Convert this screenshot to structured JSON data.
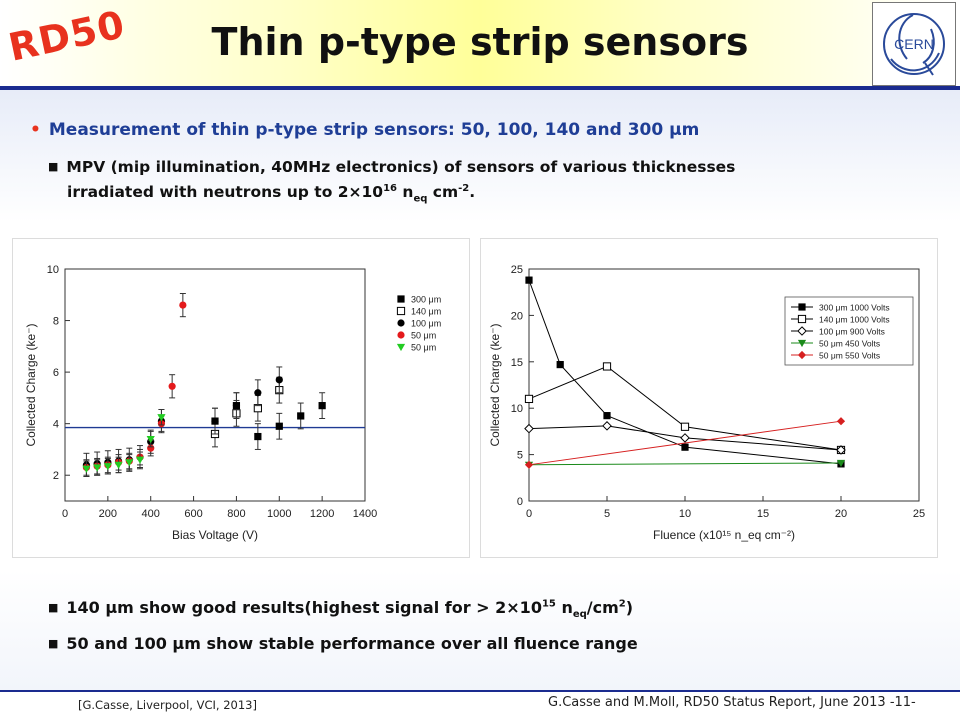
{
  "header": {
    "logo_text": "RD50",
    "title": "Thin p-type strip sensors",
    "cern_logo_text": "CERN"
  },
  "bullets": {
    "b1": "Measurement of thin p-type strip sensors: 50, 100, 140 and 300 μm",
    "b2_line1": "MPV (mip illumination, 40MHz  electronics) of sensors of various thicknesses",
    "b2_line2_pre": "irradiated with neutrons up to 2×10",
    "b2_line2_exp": "16",
    "b2_line2_post": " n",
    "b2_line2_sub": "eq",
    "b2_line2_end": " cm",
    "b2_line2_exp2": "-2",
    "b2_line2_dot": ".",
    "b3_pre": "140 μm show good results(highest signal for > 2×10",
    "b3_exp": "15",
    "b3_mid": " n",
    "b3_sub": "eq",
    "b3_mid2": "/cm",
    "b3_exp2": "2",
    "b3_end": ")",
    "b4": "50 and 100 μm show stable performance over all fluence range"
  },
  "footer": {
    "left": "[G.Casse, Liverpool, VCI, 2013]",
    "right": "G.Casse and M.Moll, RD50 Status Report, June 2013 -11-"
  },
  "chart_data": [
    {
      "type": "scatter",
      "xlabel": "Bias Voltage (V)",
      "ylabel": "Collected Charge (ke⁻)",
      "xlim": [
        0,
        1400
      ],
      "ylim": [
        1,
        10
      ],
      "xticks": [
        0,
        200,
        400,
        600,
        800,
        1000,
        1200,
        1400
      ],
      "yticks": [
        2,
        4,
        6,
        8,
        10
      ],
      "reference_line": {
        "y": 3.85,
        "color": "#1f3a93"
      },
      "legend_position": "top-right",
      "series": [
        {
          "name": "300 μm",
          "marker": "square-filled",
          "color": "#000000",
          "x": [
            700,
            800,
            900,
            1000,
            1100,
            1200
          ],
          "y": [
            4.1,
            4.7,
            3.5,
            3.9,
            4.3,
            4.7
          ],
          "err": [
            0.5,
            0.5,
            0.5,
            0.5,
            0.5,
            0.5
          ]
        },
        {
          "name": "140 μm",
          "marker": "square-open",
          "color": "#000000",
          "x": [
            700,
            800,
            900,
            1000
          ],
          "y": [
            3.6,
            4.4,
            4.6,
            5.3
          ],
          "err": [
            0.5,
            0.5,
            0.5,
            0.5
          ]
        },
        {
          "name": "100 μm",
          "marker": "circle-filled",
          "color": "#000000",
          "x": [
            100,
            150,
            200,
            250,
            300,
            350,
            400,
            450,
            700,
            800,
            900,
            1000
          ],
          "y": [
            2.4,
            2.45,
            2.5,
            2.55,
            2.6,
            2.7,
            3.3,
            4.1,
            4.1,
            4.7,
            5.2,
            5.7
          ],
          "err": [
            0.45,
            0.45,
            0.45,
            0.45,
            0.45,
            0.45,
            0.45,
            0.45,
            0.5,
            0.5,
            0.5,
            0.5
          ]
        },
        {
          "name": "50 μm",
          "marker": "circle-filled",
          "color": "#e41a1c",
          "x": [
            100,
            150,
            200,
            250,
            300,
            350,
            400,
            450,
            500,
            550
          ],
          "y": [
            2.3,
            2.35,
            2.4,
            2.5,
            2.55,
            2.7,
            3.05,
            4.0,
            5.45,
            8.6
          ],
          "err": [
            0.3,
            0.3,
            0.3,
            0.3,
            0.3,
            0.3,
            0.3,
            0.3,
            0.45,
            0.45
          ]
        },
        {
          "name": "50 μm",
          "marker": "triangle-down",
          "color": "#22cc22",
          "x": [
            100,
            150,
            200,
            250,
            300,
            350,
            400,
            450
          ],
          "y": [
            2.25,
            2.3,
            2.35,
            2.4,
            2.5,
            2.6,
            3.4,
            4.25
          ],
          "err": [
            0.3,
            0.3,
            0.3,
            0.3,
            0.3,
            0.3,
            0.3,
            0.3
          ]
        }
      ]
    },
    {
      "type": "line",
      "xlabel": "Fluence (x10¹⁵ n_eq cm⁻²)",
      "ylabel": "Collected Charge (ke⁻)",
      "xlim": [
        0,
        25
      ],
      "ylim": [
        0,
        25
      ],
      "xticks": [
        0,
        5,
        10,
        15,
        20,
        25
      ],
      "yticks": [
        0,
        5,
        10,
        15,
        20,
        25
      ],
      "legend_position": "top-right",
      "series": [
        {
          "name": "300 μm 1000 Volts",
          "marker": "square-filled",
          "color": "#000000",
          "x": [
            0,
            2,
            5,
            10,
            20
          ],
          "y": [
            23.8,
            14.7,
            9.2,
            5.8,
            4.0
          ]
        },
        {
          "name": "140 μm 1000 Volts",
          "marker": "square-open",
          "color": "#000000",
          "x": [
            0,
            5,
            10,
            20
          ],
          "y": [
            11.0,
            14.5,
            8.0,
            5.5
          ]
        },
        {
          "name": "100 μm 900 Volts",
          "marker": "diamond-open",
          "color": "#000000",
          "x": [
            0,
            5,
            10,
            20
          ],
          "y": [
            7.8,
            8.1,
            6.8,
            5.5
          ]
        },
        {
          "name": "50 μm 450 Volts",
          "marker": "triangle-down",
          "color": "#1a8a1a",
          "x": [
            0,
            20
          ],
          "y": [
            3.9,
            4.1
          ]
        },
        {
          "name": "50 μm 550 Volts",
          "marker": "diamond-filled",
          "color": "#d62020",
          "x": [
            0,
            20
          ],
          "y": [
            3.9,
            8.6
          ]
        }
      ]
    }
  ]
}
